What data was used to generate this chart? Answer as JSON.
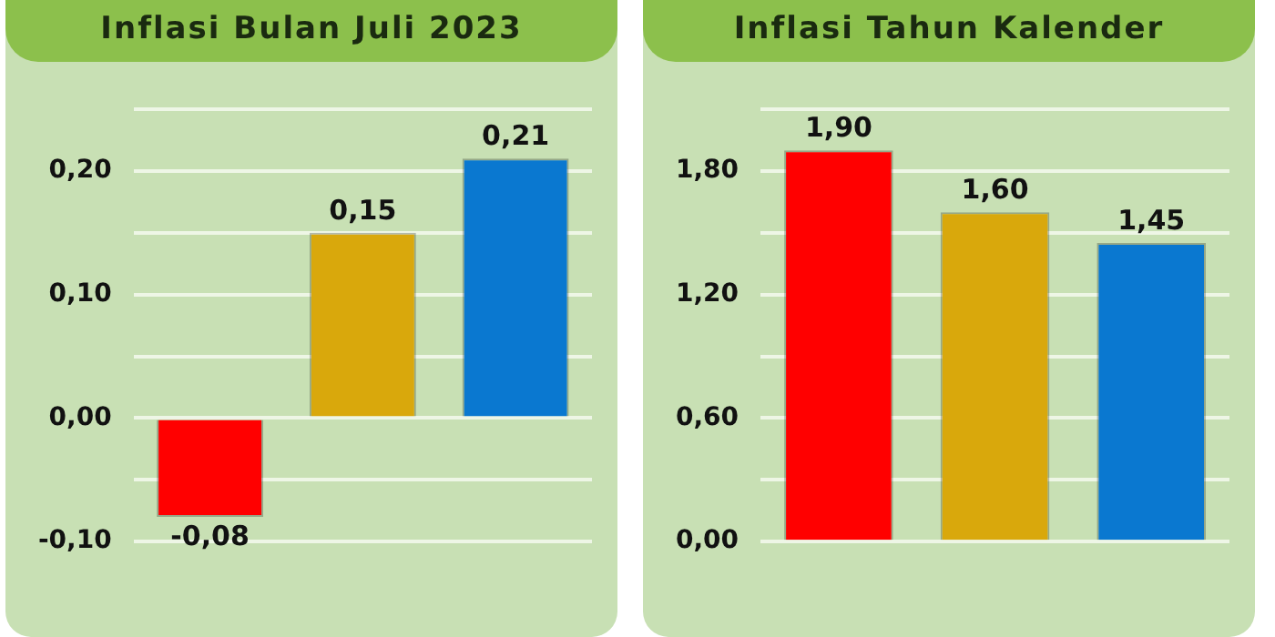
{
  "chart_data": [
    {
      "type": "bar",
      "title": "Inflasi Bulan Juli 2023",
      "categories": [
        null,
        null,
        null
      ],
      "values": [
        -0.08,
        0.15,
        0.21
      ],
      "colors": [
        "#ff0000",
        "#d9a80c",
        "#0a78d0"
      ],
      "value_labels": [
        "-0,08",
        "0,15",
        "0,21"
      ],
      "ylim": [
        -0.1,
        0.25
      ],
      "yticks": [
        {
          "value": -0.1,
          "label": "-0,10"
        },
        {
          "value": -0.05,
          "label": null
        },
        {
          "value": 0,
          "label": "0,00"
        },
        {
          "value": 0.05,
          "label": null
        },
        {
          "value": 0.1,
          "label": "0,10"
        },
        {
          "value": 0.15,
          "label": null
        },
        {
          "value": 0.2,
          "label": "0,20"
        },
        {
          "value": 0.25,
          "label": null
        }
      ],
      "grid": "y",
      "legend": false
    },
    {
      "type": "bar",
      "title": "Inflasi Tahun Kalender",
      "categories": [
        null,
        null,
        null
      ],
      "values": [
        1.9,
        1.6,
        1.45
      ],
      "colors": [
        "#ff0000",
        "#d9a80c",
        "#0a78d0"
      ],
      "value_labels": [
        "1,90",
        "1,60",
        "1,45"
      ],
      "ylim": [
        0,
        2.1
      ],
      "yticks": [
        {
          "value": 0,
          "label": "0,00"
        },
        {
          "value": 0.3,
          "label": null
        },
        {
          "value": 0.6,
          "label": "0,60"
        },
        {
          "value": 0.9,
          "label": null
        },
        {
          "value": 1.2,
          "label": "1,20"
        },
        {
          "value": 1.5,
          "label": null
        },
        {
          "value": 1.8,
          "label": "1,80"
        },
        {
          "value": 2.1,
          "label": null
        }
      ],
      "grid": "y",
      "legend": false
    }
  ]
}
